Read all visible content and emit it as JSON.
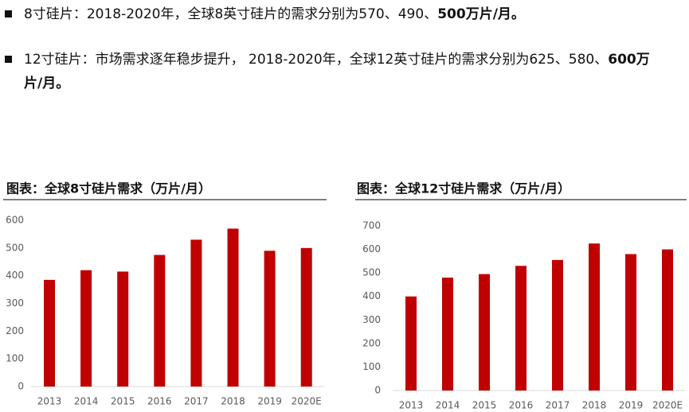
{
  "bullets": [
    [
      "8寸硅片：2018-2020年，全球8英寸硅片的需求分别为570、490、",
      "500万片/月。"
    ],
    [
      "12寸硅片：市场需求逐年稳步提升， 2018-2020年，全球12英寸硅片的需求分别为625、580、",
      "600万片/月。"
    ]
  ],
  "chart_data": [
    {
      "type": "bar",
      "title": "图表：全球8寸硅片需求（万片/月）",
      "categories": [
        "2013",
        "2014",
        "2015",
        "2016",
        "2017",
        "2018",
        "2019",
        "2020E"
      ],
      "values": [
        385,
        420,
        415,
        475,
        530,
        570,
        490,
        500
      ],
      "color": "#c00000",
      "ylim": [
        0,
        600
      ],
      "yticks": [
        0,
        100,
        200,
        300,
        400,
        500,
        600
      ],
      "grid": false
    },
    {
      "type": "bar",
      "title": "图表：全球12寸硅片需求（万片/月）",
      "categories": [
        "2013",
        "2014",
        "2015",
        "2016",
        "2017",
        "2018",
        "2019",
        "2020E"
      ],
      "values": [
        400,
        480,
        495,
        530,
        555,
        625,
        580,
        600
      ],
      "color": "#c00000",
      "ylim": [
        0,
        700
      ],
      "yticks": [
        0,
        100,
        200,
        300,
        400,
        500,
        600,
        700
      ],
      "grid": false
    }
  ]
}
